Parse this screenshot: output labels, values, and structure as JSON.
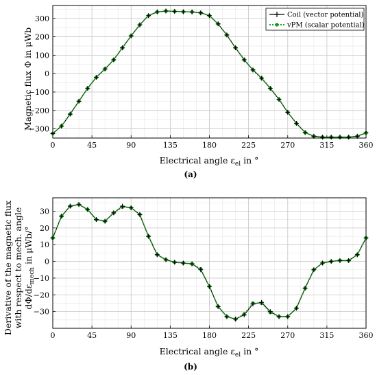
{
  "chart_data": [
    {
      "type": "line",
      "panel_label": "(a)",
      "xlabel": "Electrical angle ε",
      "xlabel_sub": "el",
      "xlabel_unit": " in °",
      "ylabel": "Magnetic flux Φ in μWb",
      "xlim": [
        0,
        360
      ],
      "ylim": [
        -350,
        370
      ],
      "xticks": [
        0,
        45,
        90,
        135,
        180,
        225,
        270,
        315,
        360
      ],
      "yticks": [
        -300,
        -200,
        -100,
        0,
        100,
        200,
        300
      ],
      "grid": true,
      "legend_position": "top-right",
      "series": [
        {
          "name": "Coil (vector potential)",
          "color": "#000000",
          "marker": "plus",
          "x": [
            0,
            10,
            20,
            30,
            40,
            50,
            60,
            70,
            80,
            90,
            100,
            110,
            120,
            130,
            140,
            150,
            160,
            170,
            180,
            190,
            200,
            210,
            220,
            230,
            240,
            250,
            260,
            270,
            280,
            290,
            300,
            310,
            320,
            330,
            340,
            350,
            360
          ],
          "y": [
            -325,
            -285,
            -220,
            -150,
            -80,
            -20,
            25,
            75,
            140,
            205,
            265,
            315,
            335,
            340,
            338,
            336,
            335,
            330,
            315,
            270,
            210,
            140,
            75,
            20,
            -25,
            -80,
            -140,
            -210,
            -270,
            -320,
            -340,
            -345,
            -345,
            -345,
            -345,
            -340,
            -322
          ]
        },
        {
          "name": "vPM (scalar potential)",
          "color": "#1a9a1a",
          "marker": "circle",
          "x": [
            0,
            10,
            20,
            30,
            40,
            50,
            60,
            70,
            80,
            90,
            100,
            110,
            120,
            130,
            140,
            150,
            160,
            170,
            180,
            190,
            200,
            210,
            220,
            230,
            240,
            250,
            260,
            270,
            280,
            290,
            300,
            310,
            320,
            330,
            340,
            350,
            360
          ],
          "y": [
            -325,
            -285,
            -220,
            -150,
            -80,
            -20,
            25,
            75,
            140,
            205,
            265,
            315,
            335,
            340,
            338,
            336,
            335,
            330,
            315,
            270,
            210,
            140,
            75,
            20,
            -25,
            -80,
            -140,
            -210,
            -270,
            -320,
            -340,
            -345,
            -345,
            -345,
            -345,
            -340,
            -322
          ]
        }
      ]
    },
    {
      "type": "line",
      "panel_label": "(b)",
      "xlabel": "Electrical angle ε",
      "xlabel_sub": "el",
      "xlabel_unit": " in °",
      "ylabel_lines": [
        "Derivative of the magnetic flux",
        "with respect to mech. angle",
        "dΦ/dε"
      ],
      "ylabel_sub": "mech",
      "ylabel_unit": " in μWb/°",
      "xlim": [
        0,
        360
      ],
      "ylim": [
        -40,
        38
      ],
      "xticks": [
        0,
        45,
        90,
        135,
        180,
        225,
        270,
        315,
        360
      ],
      "yticks": [
        -30,
        -20,
        -10,
        0,
        10,
        20,
        30
      ],
      "grid": true,
      "series": [
        {
          "name": "Coil (vector potential)",
          "color": "#000000",
          "marker": "plus",
          "x": [
            0,
            10,
            20,
            30,
            40,
            50,
            60,
            70,
            80,
            90,
            100,
            110,
            120,
            130,
            140,
            150,
            160,
            170,
            180,
            190,
            200,
            210,
            220,
            230,
            240,
            250,
            260,
            270,
            280,
            290,
            300,
            310,
            320,
            330,
            340,
            350,
            360
          ],
          "y": [
            14,
            27,
            33,
            34,
            31,
            25,
            24,
            29,
            33,
            32,
            28,
            15,
            4,
            1,
            -0.5,
            -1,
            -1.5,
            -5,
            -15,
            -27,
            -33,
            -34.5,
            -32,
            -25.5,
            -24.5,
            -30,
            -33,
            -33,
            -28,
            -16,
            -5,
            -1,
            0,
            0.5,
            0.5,
            4,
            14
          ]
        },
        {
          "name": "vPM (scalar potential)",
          "color": "#1a9a1a",
          "marker": "circle",
          "x": [
            0,
            10,
            20,
            30,
            40,
            50,
            60,
            70,
            80,
            90,
            100,
            110,
            120,
            130,
            140,
            150,
            160,
            170,
            180,
            190,
            200,
            210,
            220,
            230,
            240,
            250,
            260,
            270,
            280,
            290,
            300,
            310,
            320,
            330,
            340,
            350,
            360
          ],
          "y": [
            14,
            27,
            33,
            34,
            31,
            25,
            24,
            29,
            32.5,
            32,
            28,
            15,
            4,
            1,
            -0.5,
            -1,
            -1.5,
            -4.5,
            -15,
            -27,
            -33,
            -34.5,
            -31.5,
            -25,
            -25,
            -30.5,
            -33,
            -33,
            -28,
            -16,
            -5,
            -1,
            0,
            0.5,
            0.5,
            4,
            14
          ]
        }
      ]
    }
  ]
}
